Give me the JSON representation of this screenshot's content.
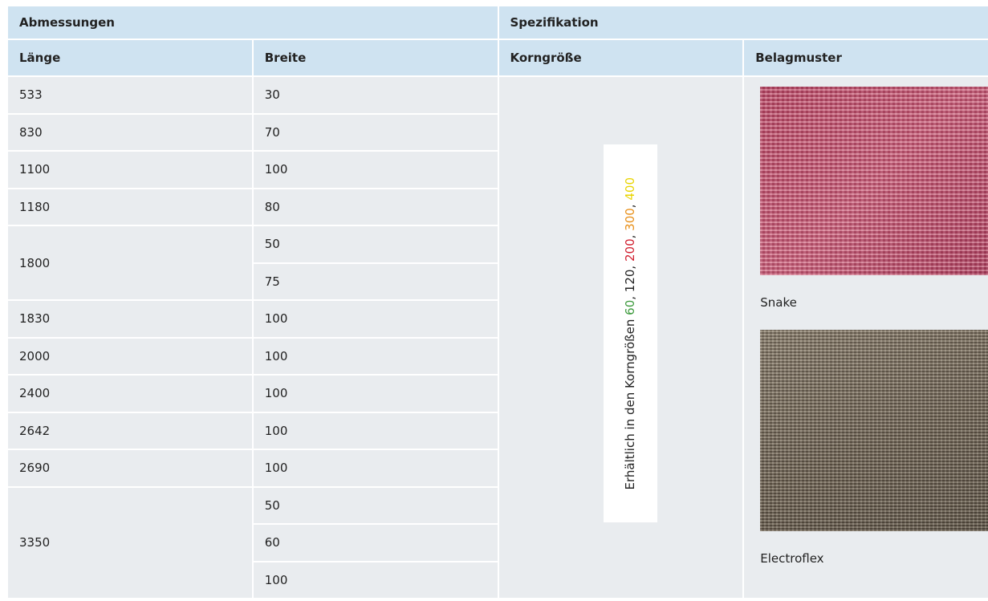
{
  "table": {
    "group_headers": [
      "Abmessungen",
      "Spezifikation"
    ],
    "column_headers": [
      "Länge",
      "Breite",
      "Korngröße",
      "Belagmuster"
    ],
    "rows": [
      {
        "length": 533,
        "widths": [
          30
        ]
      },
      {
        "length": 830,
        "widths": [
          70
        ]
      },
      {
        "length": 1100,
        "widths": [
          100
        ]
      },
      {
        "length": 1180,
        "widths": [
          80
        ]
      },
      {
        "length": 1800,
        "widths": [
          50,
          75
        ]
      },
      {
        "length": 1830,
        "widths": [
          100
        ]
      },
      {
        "length": 2000,
        "widths": [
          100
        ]
      },
      {
        "length": 2400,
        "widths": [
          100
        ]
      },
      {
        "length": 2642,
        "widths": [
          100
        ]
      },
      {
        "length": 2690,
        "widths": [
          100
        ]
      },
      {
        "length": 3350,
        "widths": [
          50,
          60,
          100
        ]
      }
    ],
    "grain": {
      "prefix": "Erhältlich in den Korngrößen",
      "separator": ", ",
      "sizes": [
        {
          "label": "60",
          "color": "#3f9b3f"
        },
        {
          "label": "120",
          "color": "#222222"
        },
        {
          "label": "200",
          "color": "#d11f2f"
        },
        {
          "label": "300",
          "color": "#e8901a"
        },
        {
          "label": "400",
          "color": "#e9d400"
        }
      ]
    },
    "patterns": [
      {
        "name": "Snake"
      },
      {
        "name": "Electroflex"
      }
    ]
  }
}
